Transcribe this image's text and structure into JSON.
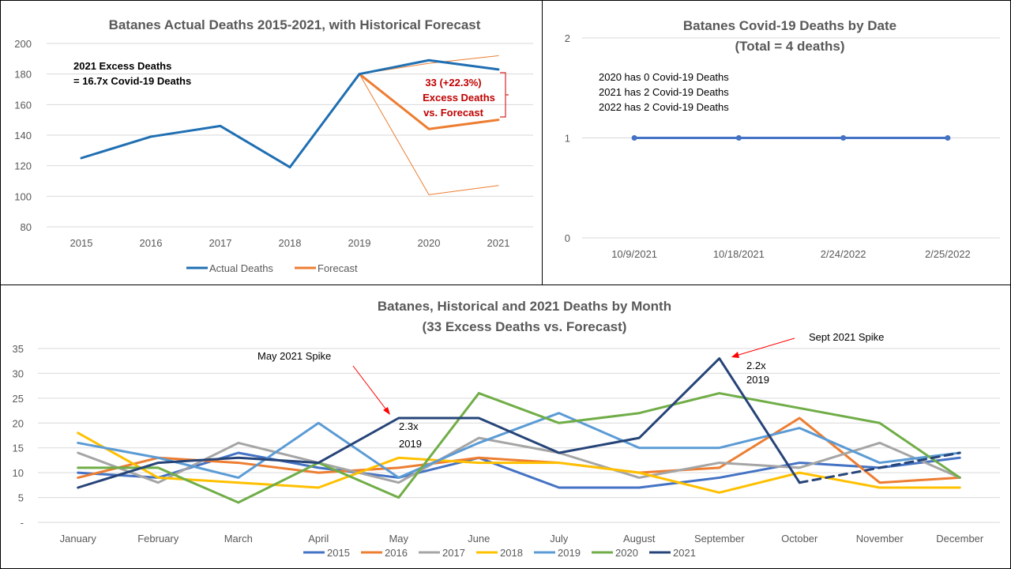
{
  "chart_data": [
    {
      "type": "line",
      "title": "Batanes Actual Deaths 2015-2021, with Historical Forecast",
      "categories": [
        "2015",
        "2016",
        "2017",
        "2018",
        "2019",
        "2020",
        "2021"
      ],
      "ylim": [
        80,
        200
      ],
      "yticks": [
        "80",
        "100",
        "120",
        "140",
        "160",
        "180",
        "200"
      ],
      "grid": true,
      "legend_position": "bottom",
      "series": [
        {
          "name": "Actual Deaths",
          "color": "#1f6fb2",
          "values": [
            125,
            139,
            146,
            119,
            180,
            189,
            183
          ]
        },
        {
          "name": "Forecast",
          "color": "#ed7d31",
          "values": [
            null,
            null,
            null,
            null,
            180,
            144,
            150
          ]
        }
      ],
      "forecast_upper": [
        null,
        null,
        null,
        null,
        180,
        187,
        192
      ],
      "forecast_lower": [
        null,
        null,
        null,
        null,
        180,
        101,
        107
      ],
      "annotations": {
        "excess_line1": "2021 Excess Deaths",
        "excess_line2": "= 16.7x Covid-19 Deaths",
        "bracket_line1": "33 (+22.3%)",
        "bracket_line2": "Excess Deaths",
        "bracket_line3": "vs. Forecast"
      }
    },
    {
      "type": "line",
      "title_line1": "Batanes Covid-19 Deaths by Date",
      "title_line2": "(Total = 4 deaths)",
      "categories": [
        "10/9/2021",
        "10/18/2021",
        "2/24/2022",
        "2/25/2022"
      ],
      "ylim": [
        0,
        2
      ],
      "yticks": [
        "0",
        "1",
        "2"
      ],
      "grid": true,
      "series": [
        {
          "color": "#4472c4",
          "values": [
            1,
            1,
            1,
            1
          ]
        }
      ],
      "annotations": {
        "note1": "2020 has 0 Covid-19 Deaths",
        "note2": "2021 has 2 Covid-19 Deaths",
        "note3": "2022 has 2 Covid-19 Deaths"
      }
    },
    {
      "type": "line",
      "title_line1": "Batanes, Historical and 2021 Deaths by Month",
      "title_line2": "(33 Excess Deaths vs. Forecast)",
      "categories": [
        "January",
        "February",
        "March",
        "April",
        "May",
        "June",
        "July",
        "August",
        "September",
        "October",
        "November",
        "December"
      ],
      "ylim": [
        0,
        35
      ],
      "yticks": [
        "-",
        "5",
        "10",
        "15",
        "20",
        "25",
        "30",
        "35"
      ],
      "grid": true,
      "legend_position": "bottom",
      "series": [
        {
          "name": "2015",
          "color": "#4472c4",
          "values": [
            10,
            9,
            14,
            11,
            9,
            13,
            7,
            7,
            9,
            12,
            11,
            13
          ]
        },
        {
          "name": "2016",
          "color": "#ed7d31",
          "values": [
            9,
            13,
            12,
            10,
            11,
            13,
            12,
            10,
            11,
            21,
            8,
            9
          ]
        },
        {
          "name": "2017",
          "color": "#a5a5a5",
          "values": [
            14,
            8,
            16,
            12,
            8,
            17,
            14,
            9,
            12,
            11,
            16,
            9
          ]
        },
        {
          "name": "2018",
          "color": "#ffc000",
          "values": [
            18,
            9,
            8,
            7,
            13,
            12,
            12,
            10,
            6,
            10,
            7,
            7
          ]
        },
        {
          "name": "2019",
          "color": "#5b9bd5",
          "values": [
            16,
            13,
            9,
            20,
            9,
            16,
            22,
            15,
            15,
            19,
            12,
            14
          ]
        },
        {
          "name": "2020",
          "color": "#70ad47",
          "values": [
            11,
            11,
            4,
            12,
            5,
            26,
            20,
            22,
            26,
            23,
            20,
            9
          ]
        },
        {
          "name": "2021",
          "color": "#264478",
          "values": [
            7,
            12,
            13,
            12,
            21,
            21,
            14,
            17,
            33,
            8,
            11,
            14
          ]
        }
      ],
      "annotations": {
        "may_spike": "May 2021 Spike",
        "sept_spike": "Sept 2021 Spike",
        "may_ratio1": "2.3x",
        "may_ratio2": "2019",
        "sept_ratio1": "2.2x",
        "sept_ratio2": "2019"
      }
    }
  ]
}
